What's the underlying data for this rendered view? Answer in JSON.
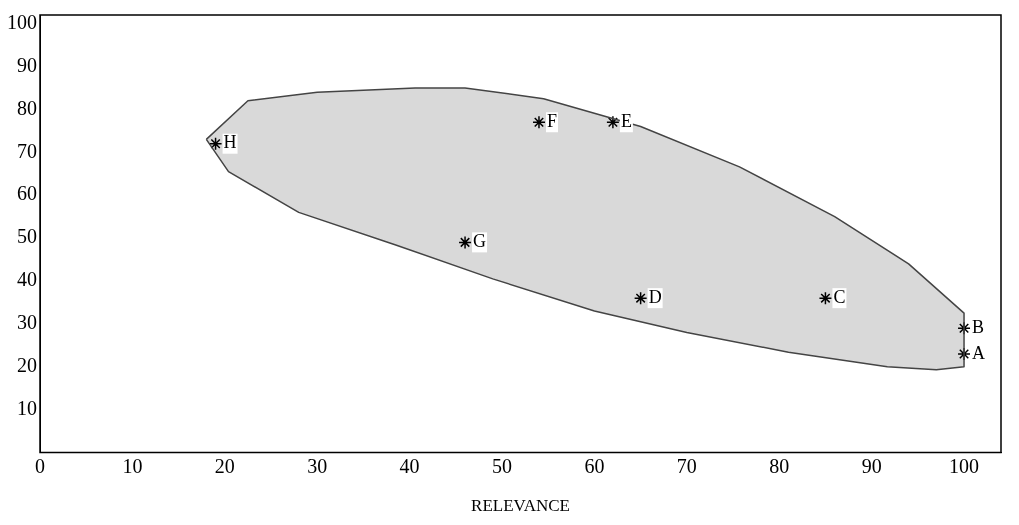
{
  "chart_data": {
    "type": "scatter",
    "xlabel": "RELEVANCE",
    "xlim": [
      0,
      104
    ],
    "ylim": [
      0,
      102
    ],
    "xticks": [
      0,
      10,
      20,
      30,
      40,
      50,
      60,
      70,
      80,
      90,
      100
    ],
    "yticks": [
      10,
      20,
      30,
      40,
      50,
      60,
      70,
      80,
      90,
      100
    ],
    "grid": false,
    "legend": false,
    "series": [
      {
        "type": "area",
        "color": "#444444",
        "marker": "none",
        "x": [
          18,
          22.5,
          30,
          40.6,
          46,
          54.5,
          65,
          75.7,
          86,
          94,
          100,
          100,
          97,
          91.7,
          81,
          70,
          60,
          49,
          38.5,
          28,
          20.4,
          18
        ],
        "values": [
          73,
          82,
          84,
          85,
          85,
          82.5,
          76,
          66.6,
          55,
          44,
          32.5,
          20,
          19.3,
          20,
          23.4,
          28,
          33,
          40.5,
          48.4,
          56,
          65.5,
          73
        ]
      },
      {
        "type": "scatter",
        "color": "#000000",
        "marker": "cross",
        "x": [
          100,
          100,
          85,
          65,
          62,
          54,
          46,
          19
        ],
        "values": [
          23,
          29,
          36,
          36,
          77,
          77,
          49,
          72
        ]
      }
    ],
    "annotations": [
      {
        "text": "A",
        "x": 100,
        "y": 23
      },
      {
        "text": "B",
        "x": 100,
        "y": 29
      },
      {
        "text": "C",
        "x": 85,
        "y": 36
      },
      {
        "text": "D",
        "x": 65,
        "y": 36
      },
      {
        "text": "E",
        "x": 62,
        "y": 77
      },
      {
        "text": "F",
        "x": 54,
        "y": 77
      },
      {
        "text": "G",
        "x": 46,
        "y": 49
      },
      {
        "text": "H",
        "x": 19,
        "y": 72
      }
    ]
  }
}
